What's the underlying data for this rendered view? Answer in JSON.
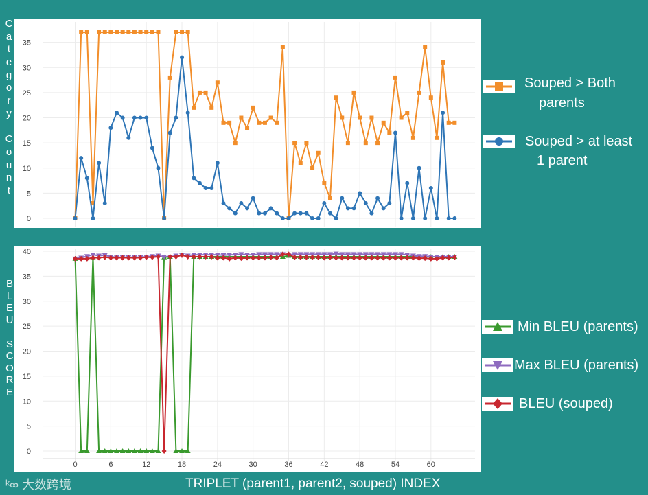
{
  "chart_data": [
    {
      "type": "line",
      "ylabel": "Category Count",
      "ylim": [
        0,
        37
      ],
      "xlim": [
        -4,
        65
      ],
      "yticks": [
        0,
        5,
        10,
        15,
        20,
        25,
        30,
        35
      ],
      "xticks": [
        0,
        6,
        12,
        18,
        24,
        30,
        36,
        42,
        48,
        54,
        60
      ],
      "show_xtick_labels": false,
      "series": [
        {
          "name": "Souped > Both parents",
          "color": "#f28e2b",
          "marker": "square",
          "values": [
            0,
            37,
            37,
            3,
            37,
            37,
            37,
            37,
            37,
            37,
            37,
            37,
            37,
            37,
            37,
            0,
            28,
            37,
            37,
            37,
            22,
            25,
            25,
            22,
            27,
            19,
            19,
            15,
            20,
            18,
            22,
            19,
            19,
            20,
            19,
            34,
            0,
            15,
            11,
            15,
            10,
            13,
            7,
            4,
            24,
            20,
            15,
            25,
            20,
            15,
            20,
            15,
            19,
            17,
            28,
            20,
            21,
            16,
            25,
            34,
            24,
            16,
            31,
            19,
            19
          ]
        },
        {
          "name": "Souped > at least 1 parent",
          "color": "#2e75b6",
          "marker": "circle",
          "values": [
            0,
            12,
            8,
            0,
            11,
            3,
            18,
            21,
            20,
            16,
            20,
            20,
            20,
            14,
            10,
            0,
            17,
            20,
            32,
            21,
            8,
            7,
            6,
            6,
            11,
            3,
            2,
            1,
            3,
            2,
            4,
            1,
            1,
            2,
            1,
            0,
            0,
            1,
            1,
            1,
            0,
            0,
            3,
            1,
            0,
            4,
            2,
            2,
            5,
            3,
            1,
            4,
            2,
            3,
            17,
            0,
            7,
            0,
            10,
            0,
            6,
            0,
            21,
            0,
            0
          ]
        }
      ]
    },
    {
      "type": "line",
      "ylabel": "BLEU SCORE",
      "xlabel": "TRIPLET (parent1, parent2, souped) INDEX",
      "ylim": [
        0,
        40
      ],
      "xlim": [
        -4,
        65
      ],
      "yticks": [
        0,
        5,
        10,
        15,
        20,
        25,
        30,
        35,
        40
      ],
      "xticks": [
        0,
        6,
        12,
        18,
        24,
        30,
        36,
        42,
        48,
        54,
        60
      ],
      "show_xtick_labels": true,
      "series": [
        {
          "name": "Min BLEU (parents)",
          "color": "#3a9a2e",
          "marker": "triangle-up",
          "values": [
            38.5,
            0,
            0,
            38.8,
            0,
            0,
            0,
            0,
            0,
            0,
            0,
            0,
            0,
            0,
            0,
            38.8,
            38.9,
            0,
            0,
            0,
            38.9,
            38.9,
            38.9,
            38.9,
            38.9,
            38.9,
            38.9,
            38.9,
            38.9,
            38.9,
            38.9,
            38.9,
            38.9,
            38.9,
            38.9,
            38.9,
            39.1,
            38.9,
            38.9,
            38.9,
            38.9,
            38.9,
            38.9,
            38.9,
            38.9,
            38.9,
            38.9,
            38.9,
            38.9,
            38.9,
            38.9,
            38.9,
            38.9,
            38.9,
            38.9,
            38.9,
            38.9,
            38.9,
            38.9,
            38.9,
            38.9,
            38.9,
            38.9,
            38.9,
            38.9
          ]
        },
        {
          "name": "Max BLEU (parents)",
          "color": "#8e6bbf",
          "marker": "triangle-down",
          "values": [
            38.5,
            38.7,
            39.0,
            39.3,
            39.1,
            39.2,
            38.9,
            38.8,
            38.8,
            38.8,
            38.8,
            38.8,
            38.9,
            39.0,
            39.1,
            38.9,
            38.9,
            39.1,
            39.2,
            39.1,
            39.3,
            39.3,
            39.3,
            39.3,
            39.3,
            39.2,
            39.3,
            39.3,
            39.4,
            39.3,
            39.3,
            39.4,
            39.4,
            39.4,
            39.4,
            39.4,
            39.3,
            39.4,
            39.4,
            39.4,
            39.4,
            39.4,
            39.4,
            39.4,
            39.5,
            39.4,
            39.4,
            39.4,
            39.4,
            39.4,
            39.4,
            39.4,
            39.4,
            39.4,
            39.4,
            39.4,
            39.3,
            39.1,
            39.0,
            39.0,
            38.9,
            38.9,
            38.9,
            38.9,
            38.9
          ]
        },
        {
          "name": "BLEU (souped)",
          "color": "#c8272f",
          "marker": "diamond",
          "values": [
            38.5,
            38.5,
            38.5,
            38.7,
            38.7,
            38.8,
            38.7,
            38.7,
            38.7,
            38.7,
            38.7,
            38.7,
            38.8,
            38.8,
            38.9,
            0,
            38.9,
            38.9,
            39.2,
            38.9,
            38.9,
            38.9,
            38.9,
            38.9,
            38.7,
            38.7,
            38.5,
            38.7,
            38.6,
            38.7,
            38.7,
            38.7,
            38.7,
            38.8,
            38.7,
            39.4,
            39.4,
            38.8,
            38.8,
            38.8,
            38.8,
            38.8,
            38.7,
            38.8,
            38.7,
            38.7,
            38.7,
            38.7,
            38.7,
            38.7,
            38.7,
            38.7,
            38.7,
            38.7,
            38.7,
            38.7,
            38.7,
            38.7,
            38.6,
            38.6,
            38.5,
            38.5,
            38.7,
            38.7,
            38.8
          ]
        }
      ]
    }
  ],
  "legend_top": {
    "item1": {
      "line1": "Souped > Both",
      "line2": "parents"
    },
    "item2": {
      "line1": "Souped > at least",
      "line2": "1 parent"
    }
  },
  "legend_bottom": {
    "item1": "Min BLEU (parents)",
    "item2": "Max BLEU (parents)",
    "item3": "BLEU (souped)"
  },
  "watermark": "大数跨境"
}
